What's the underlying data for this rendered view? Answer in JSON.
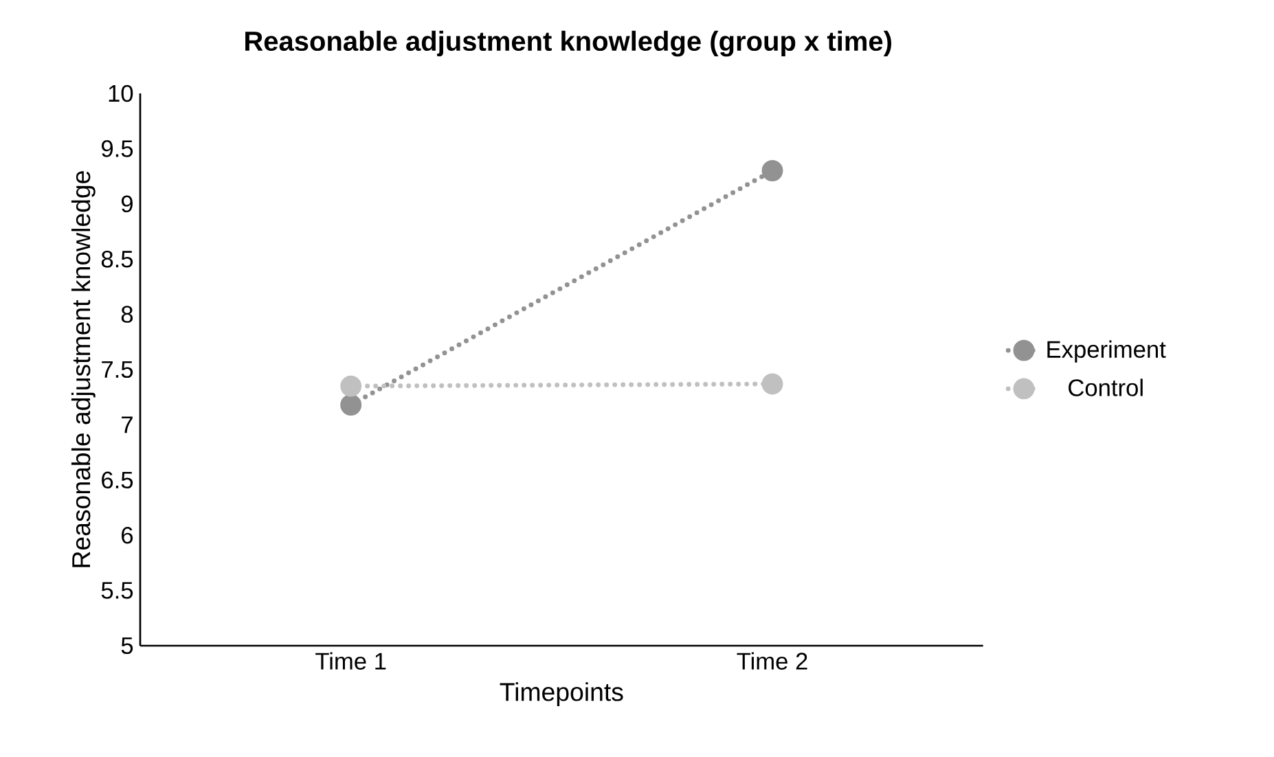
{
  "chart_data": {
    "type": "line",
    "title": "Reasonable adjustment knowledge (group x time)",
    "xlabel": "Timepoints",
    "ylabel": "Reasonable adjustment knowledge",
    "categories": [
      "Time 1",
      "Time 2"
    ],
    "series": [
      {
        "name": "Experiment",
        "color": "#929292",
        "values": [
          7.18,
          9.3
        ]
      },
      {
        "name": "Control",
        "color": "#c0c0c0",
        "values": [
          7.35,
          7.37
        ]
      }
    ],
    "ylim": [
      5,
      10
    ],
    "yticks": [
      5,
      5.5,
      6,
      6.5,
      7,
      7.5,
      8,
      8.5,
      9,
      9.5,
      10
    ],
    "legend": "right",
    "marker": "circle",
    "line_style": "dotted",
    "grid": false
  }
}
